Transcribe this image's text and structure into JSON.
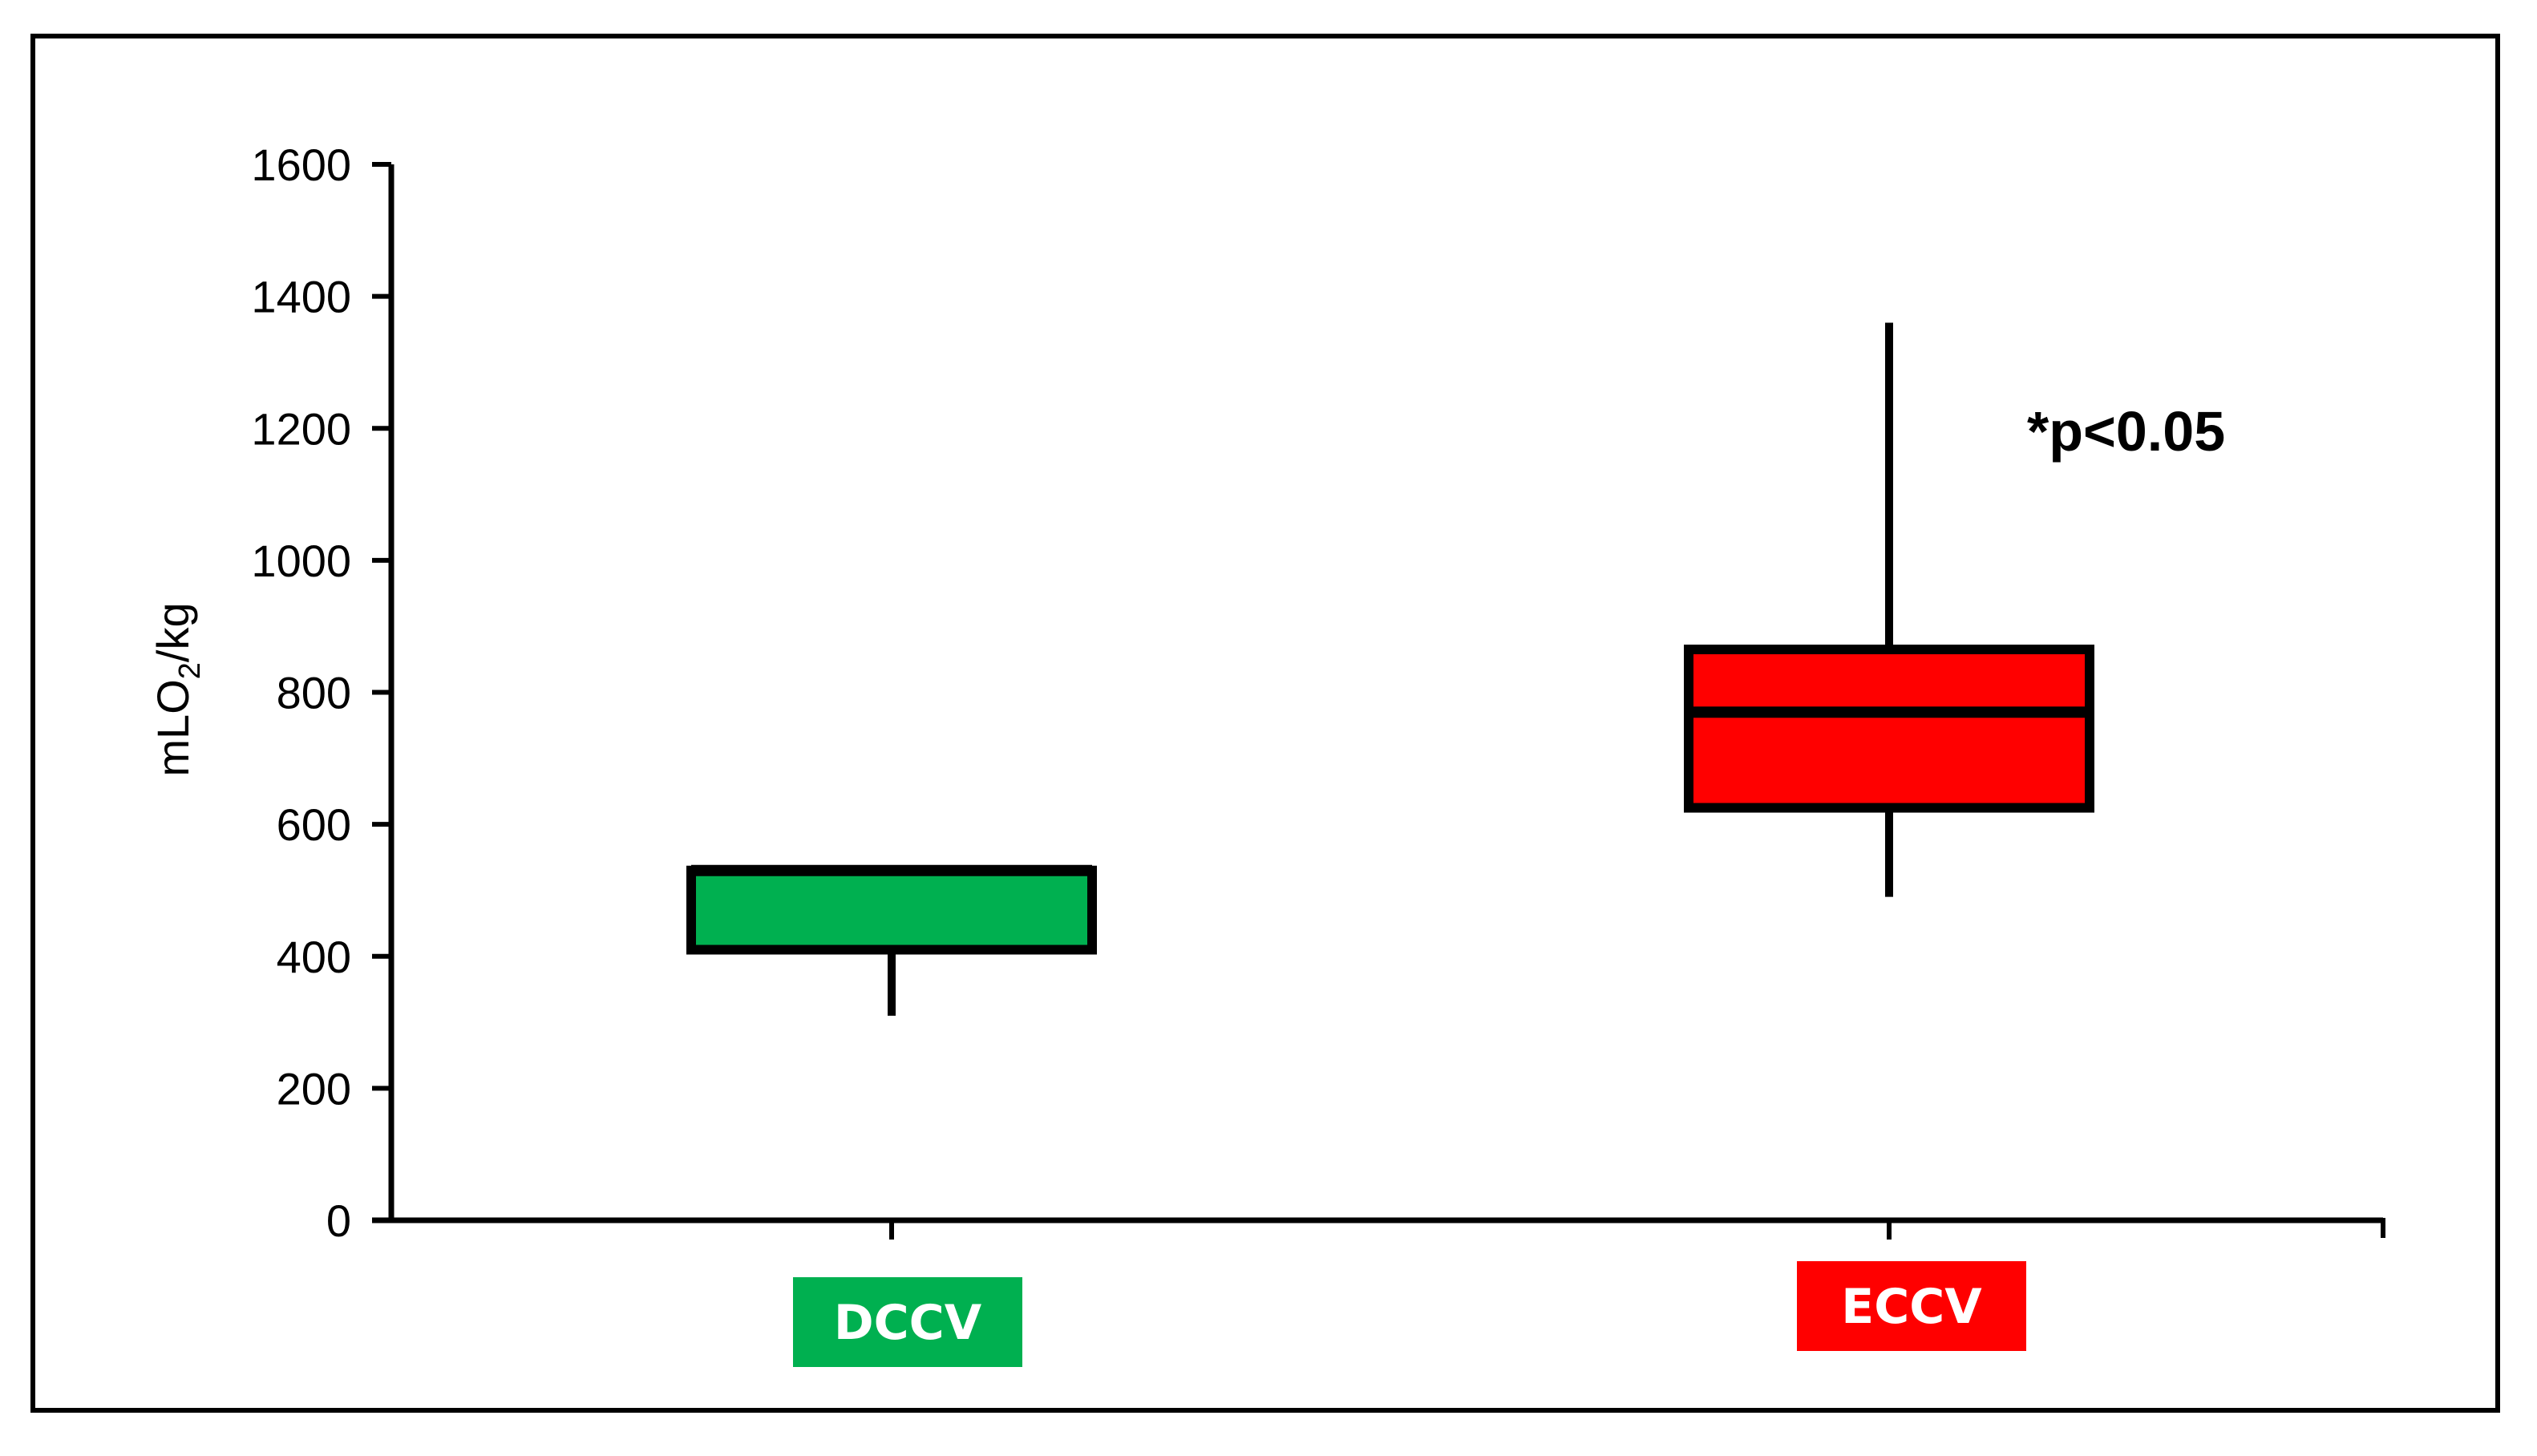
{
  "chart_data": {
    "type": "box",
    "categories": [
      "DCCV",
      "ECCV"
    ],
    "ylabel": "mLO",
    "ylabel_sub": "2",
    "ylabel_tail": "/kg",
    "ylim": [
      0,
      1600
    ],
    "yticks": [
      0,
      200,
      400,
      600,
      800,
      1000,
      1200,
      1400,
      1600
    ],
    "yticks_text": [
      "0",
      "200",
      "400",
      "600",
      "800",
      "1000",
      "1200",
      "1400",
      "1600"
    ],
    "grid": false,
    "annotation": "*p<0.05",
    "boxes": [
      {
        "category": "DCCV",
        "color": "#00b050",
        "min": 310,
        "q1": 410,
        "median": 530,
        "q3": 530,
        "max": 530
      },
      {
        "category": "ECCV",
        "color": "#ff0000",
        "min": 490,
        "q1": 625,
        "median": 770,
        "q3": 865,
        "max": 1360
      }
    ]
  }
}
